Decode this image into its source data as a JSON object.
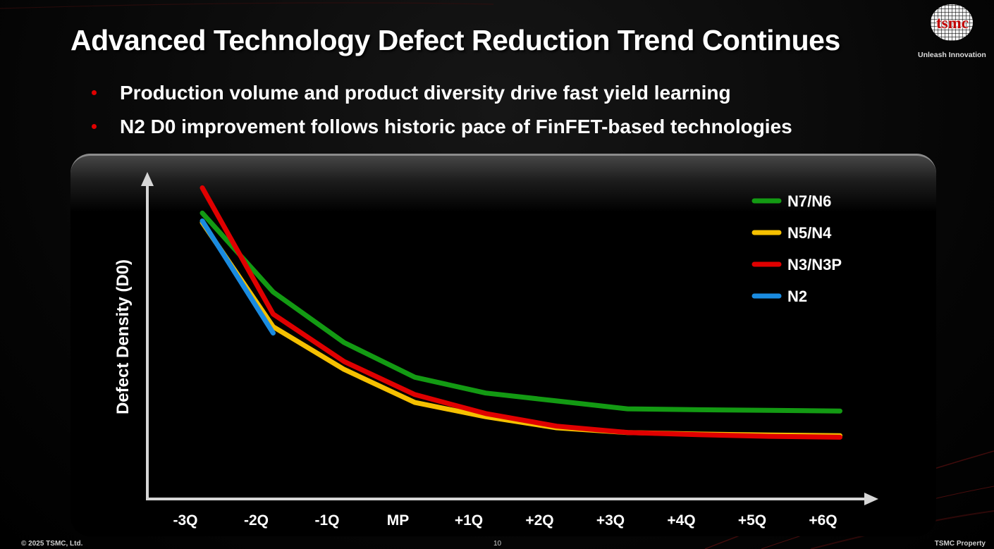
{
  "slide": {
    "title": "Advanced Technology Defect Reduction Trend Continues",
    "bullets": [
      "Production volume and product diversity drive fast yield learning",
      "N2 D0 improvement follows historic pace of FinFET-based technologies"
    ],
    "logo": {
      "wordmark": "tsmc",
      "tagline": "Unleash Innovation"
    },
    "footer": {
      "copyright": "© 2025 TSMC, Ltd.",
      "page_number": "10",
      "property": "TSMC Property"
    },
    "colors": {
      "background": "#000000",
      "bullet": "#e00000",
      "logo_red": "#c00000"
    }
  },
  "chart_data": {
    "type": "line",
    "title": "",
    "xlabel": "",
    "ylabel": "Defect Density (D0)",
    "categories": [
      "-3Q",
      "-2Q",
      "-1Q",
      "MP",
      "+1Q",
      "+2Q",
      "+3Q",
      "+4Q",
      "+5Q",
      "+6Q"
    ],
    "ylim": [
      0,
      100
    ],
    "y_ticks_labeled": false,
    "legend_position": "top-right",
    "series": [
      {
        "name": "N7/N6",
        "color": "#139a13",
        "points": [
          [
            0,
            91
          ],
          [
            1,
            66
          ],
          [
            2,
            50
          ],
          [
            3,
            39
          ],
          [
            4,
            34
          ],
          [
            5,
            31.5
          ],
          [
            6,
            29
          ],
          [
            7,
            28.7
          ],
          [
            8,
            28.5
          ],
          [
            9,
            28.3
          ]
        ]
      },
      {
        "name": "N5/N4",
        "color": "#f5c000",
        "points": [
          [
            0,
            88
          ],
          [
            1,
            55
          ],
          [
            2,
            41.5
          ],
          [
            3,
            31
          ],
          [
            4,
            26.5
          ],
          [
            5,
            23
          ],
          [
            6,
            21.5
          ],
          [
            7,
            21
          ],
          [
            8,
            20.7
          ],
          [
            9,
            20.5
          ]
        ]
      },
      {
        "name": "N3/N3P",
        "color": "#e00000",
        "points": [
          [
            0,
            99
          ],
          [
            1,
            59
          ],
          [
            2,
            44
          ],
          [
            3,
            33.5
          ],
          [
            4,
            27.5
          ],
          [
            5,
            23.5
          ],
          [
            6,
            21.5
          ],
          [
            7,
            20.8
          ],
          [
            8,
            20.3
          ],
          [
            9,
            20
          ]
        ]
      },
      {
        "name": "N2",
        "color": "#1a8be0",
        "points": [
          [
            0,
            88.5
          ],
          [
            1,
            53
          ]
        ]
      }
    ]
  }
}
